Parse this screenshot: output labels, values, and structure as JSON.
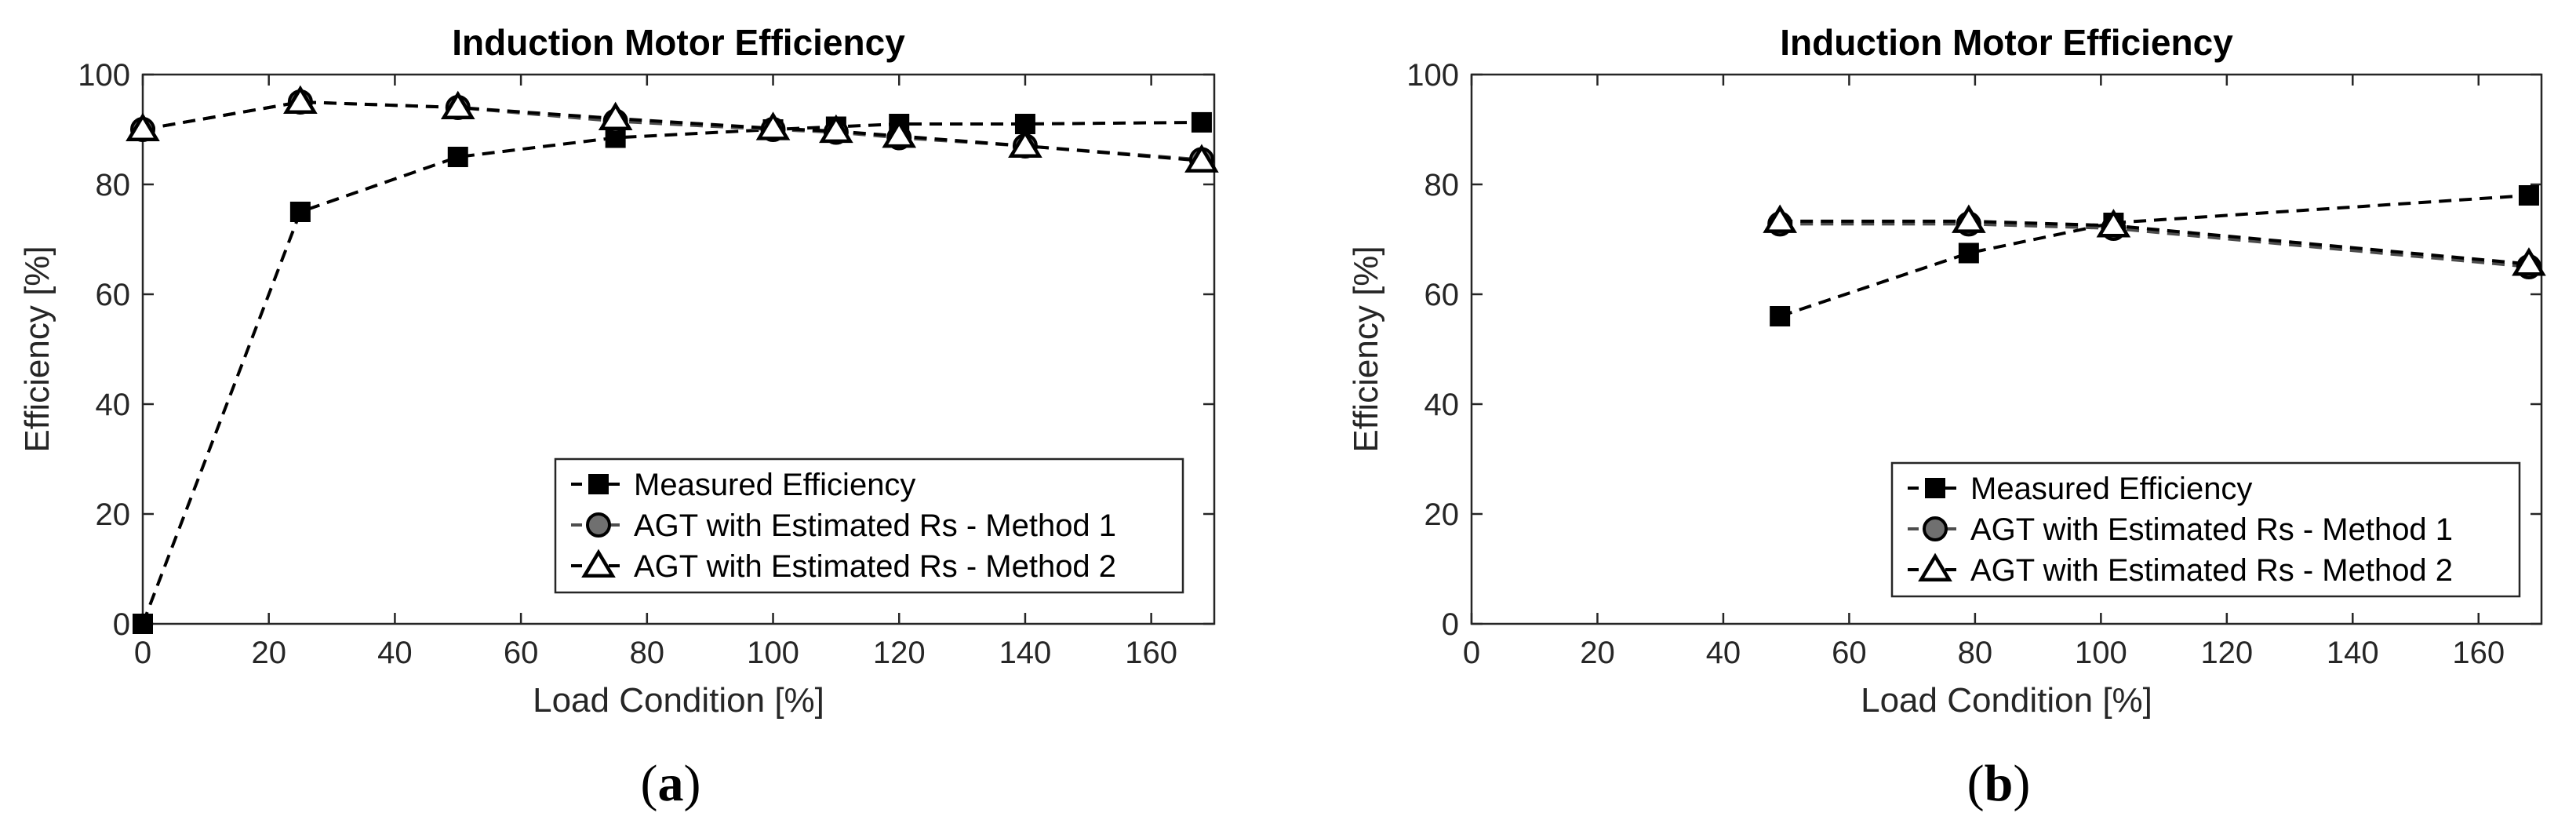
{
  "chart_data": [
    {
      "type": "line",
      "title": "Induction Motor Efficiency",
      "xlabel": "Load Condition [%]",
      "ylabel": "Efficiency [%]",
      "xlim": [
        0,
        170
      ],
      "ylim": [
        0,
        100
      ],
      "xticks": [
        0,
        20,
        40,
        60,
        80,
        100,
        120,
        140,
        160
      ],
      "yticks": [
        0,
        20,
        40,
        60,
        80,
        100
      ],
      "grid": false,
      "legend_position": "bottom-right",
      "panel_label": "a",
      "series": [
        {
          "name": "Measured Efficiency",
          "marker": "square-filled",
          "color": "#000000",
          "points": [
            [
              0,
              0
            ],
            [
              25,
              75
            ],
            [
              50,
              85
            ],
            [
              75,
              88.5
            ],
            [
              100,
              90
            ],
            [
              110,
              90.5
            ],
            [
              120,
              91
            ],
            [
              140,
              91
            ],
            [
              168,
              91.3
            ]
          ]
        },
        {
          "name": "AGT with Estimated Rs - Method 1",
          "marker": "circle-filled-gray",
          "color": "#4d4d4d",
          "points": [
            [
              0,
              90
            ],
            [
              25,
              95
            ],
            [
              50,
              94
            ],
            [
              75,
              91.5
            ],
            [
              100,
              90
            ],
            [
              110,
              89.5
            ],
            [
              120,
              88.5
            ],
            [
              140,
              87
            ],
            [
              168,
              84.5
            ]
          ]
        },
        {
          "name": "AGT with Estimated Rs - Method 2",
          "marker": "triangle-open",
          "color": "#000000",
          "points": [
            [
              0,
              90
            ],
            [
              25,
              95
            ],
            [
              50,
              94
            ],
            [
              75,
              92
            ],
            [
              100,
              90.2
            ],
            [
              110,
              89.7
            ],
            [
              120,
              88.8
            ],
            [
              140,
              87
            ],
            [
              168,
              84.3
            ]
          ]
        }
      ]
    },
    {
      "type": "line",
      "title": "Induction Motor Efficiency",
      "xlabel": "Load Condition [%]",
      "ylabel": "Efficiency [%]",
      "xlim": [
        0,
        170
      ],
      "ylim": [
        0,
        100
      ],
      "xticks": [
        0,
        20,
        40,
        60,
        80,
        100,
        120,
        140,
        160
      ],
      "yticks": [
        0,
        20,
        40,
        60,
        80,
        100
      ],
      "grid": false,
      "legend_position": "bottom-right",
      "panel_label": "b",
      "series": [
        {
          "name": "Measured Efficiency",
          "marker": "square-filled",
          "color": "#000000",
          "points": [
            [
              49,
              56
            ],
            [
              79,
              67.5
            ],
            [
              102,
              73
            ],
            [
              168,
              78
            ]
          ]
        },
        {
          "name": "AGT with Estimated Rs - Method 1",
          "marker": "circle-filled-gray",
          "color": "#4d4d4d",
          "points": [
            [
              49,
              72.8
            ],
            [
              79,
              72.8
            ],
            [
              102,
              72
            ],
            [
              168,
              65
            ]
          ]
        },
        {
          "name": "AGT with Estimated Rs - Method 2",
          "marker": "triangle-open",
          "color": "#000000",
          "points": [
            [
              49,
              73.3
            ],
            [
              79,
              73.3
            ],
            [
              102,
              72.5
            ],
            [
              168,
              65.5
            ]
          ]
        }
      ]
    }
  ]
}
